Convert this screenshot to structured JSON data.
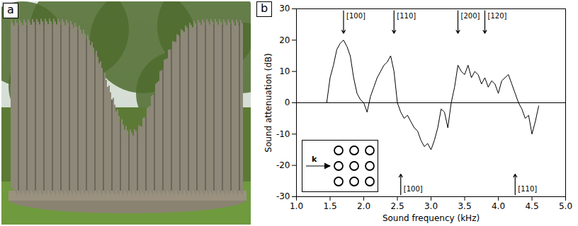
{
  "panel_a": {
    "panel_label": "a"
  },
  "chart_data": {
    "type": "line",
    "panel_label": "b",
    "x_label": "Sound frequency (kHz)",
    "y_label": "Sound attenuation (dB)",
    "xlim": [
      1.0,
      5.0
    ],
    "xticks": [
      {
        "value": 1.0,
        "label": "1.0"
      },
      1.5,
      {
        "value": 2.0,
        "label": "2.0"
      },
      2.5,
      {
        "value": 3.0,
        "label": "3.0"
      },
      3.5,
      {
        "value": 4.0,
        "label": "4.0"
      },
      4.5,
      {
        "value": 5.0,
        "label": "5.0"
      }
    ],
    "ylim": [
      -30,
      30
    ],
    "yticks": [
      -30,
      -20,
      -10,
      0,
      10,
      20,
      30
    ],
    "hline": 0,
    "color": "#000000",
    "x": [
      1.45,
      1.5,
      1.55,
      1.6,
      1.65,
      1.7,
      1.75,
      1.8,
      1.85,
      1.9,
      1.95,
      2.0,
      2.05,
      2.1,
      2.15,
      2.2,
      2.25,
      2.3,
      2.35,
      2.4,
      2.45,
      2.5,
      2.55,
      2.6,
      2.65,
      2.7,
      2.75,
      2.8,
      2.85,
      2.9,
      2.95,
      3.0,
      3.05,
      3.1,
      3.15,
      3.2,
      3.25,
      3.3,
      3.35,
      3.4,
      3.45,
      3.5,
      3.55,
      3.6,
      3.65,
      3.7,
      3.75,
      3.8,
      3.85,
      3.9,
      3.95,
      4.0,
      4.05,
      4.1,
      4.15,
      4.2,
      4.25,
      4.3,
      4.35,
      4.4,
      4.45,
      4.5,
      4.55,
      4.6
    ],
    "values": [
      0,
      8,
      12,
      17,
      19,
      20,
      18,
      15,
      8,
      3,
      1,
      0,
      -3,
      2,
      5,
      8,
      10,
      12,
      13,
      15,
      10,
      0,
      -3,
      -5,
      -4,
      -6,
      -8,
      -9,
      -12,
      -14,
      -13,
      -15,
      -12,
      -8,
      -2,
      -3,
      -8,
      0,
      5,
      12,
      10,
      9,
      12,
      8,
      10,
      9,
      6,
      8,
      5,
      7,
      6,
      3,
      7,
      8,
      9,
      6,
      3,
      0,
      -2,
      -5,
      -4,
      -10,
      -6,
      -1
    ],
    "annotations": [
      {
        "text": "[100]",
        "x": 1.7,
        "direction": "down"
      },
      {
        "text": "[110]",
        "x": 2.45,
        "direction": "down"
      },
      {
        "text": "[200]",
        "x": 3.4,
        "direction": "down"
      },
      {
        "text": "[120]",
        "x": 3.8,
        "direction": "down"
      },
      {
        "text": "[100]",
        "x": 2.55,
        "direction": "up"
      },
      {
        "text": "[110]",
        "x": 4.25,
        "direction": "up"
      }
    ],
    "inset": {
      "label": "k"
    }
  }
}
